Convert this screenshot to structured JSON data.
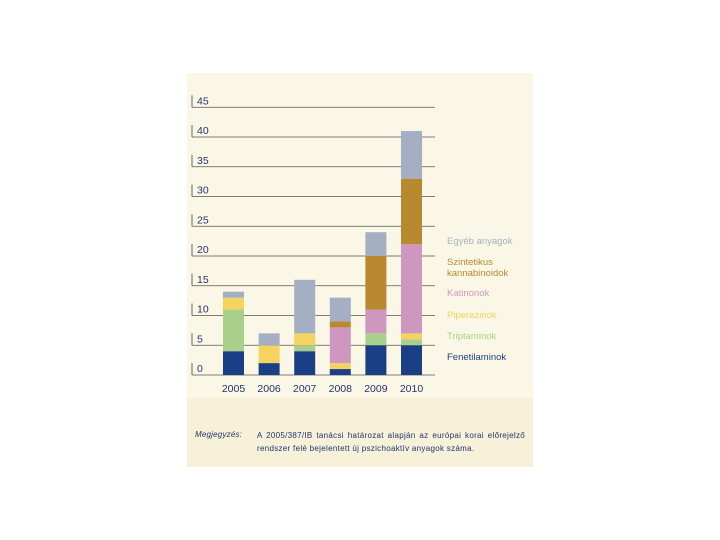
{
  "chart_data": {
    "type": "bar",
    "stacked": true,
    "categories": [
      "2005",
      "2006",
      "2007",
      "2008",
      "2009",
      "2010"
    ],
    "ylim": [
      0,
      45
    ],
    "yticks": [
      0,
      5,
      10,
      15,
      20,
      25,
      30,
      35,
      40,
      45
    ],
    "series": [
      {
        "name": "Fenetilaminok",
        "color": "#1b3f86",
        "values": [
          4,
          2,
          4,
          1,
          5,
          5
        ]
      },
      {
        "name": "Triptaminok",
        "color": "#a9d08a",
        "values": [
          7,
          0,
          1,
          0,
          2,
          1
        ]
      },
      {
        "name": "Piperazinok",
        "color": "#f6d260",
        "values": [
          2,
          3,
          2,
          1,
          0,
          1
        ]
      },
      {
        "name": "Katinonok",
        "color": "#cf97bf",
        "values": [
          0,
          0,
          0,
          6,
          4,
          15
        ]
      },
      {
        "name": "Szintetikus kannabinoidok",
        "color": "#b98930",
        "values": [
          0,
          0,
          0,
          1,
          9,
          11
        ]
      },
      {
        "name": "Egyéb anyagok",
        "color": "#a5afc4",
        "values": [
          1,
          2,
          9,
          4,
          4,
          8
        ]
      }
    ]
  },
  "legend": [
    {
      "lines": [
        "Egyéb anyagok"
      ],
      "color": "#a5afc4"
    },
    {
      "lines": [
        "Szintetikus",
        "kannabinoidok"
      ],
      "color": "#b98930"
    },
    {
      "lines": [
        "Katinonok"
      ],
      "color": "#cf97bf"
    },
    {
      "lines": [
        "Piperazinok"
      ],
      "color": "#f6d260"
    },
    {
      "lines": [
        "Triptaminok"
      ],
      "color": "#a9d08a"
    },
    {
      "lines": [
        "Fenetilaminok"
      ],
      "color": "#1b3f86"
    }
  ],
  "note": {
    "label": "Megjegyzés:",
    "text": "A 2005/387/IB tanácsi határozat alapján az európai korai előrejelző rendszer felé bejelentett új pszichoaktív anyagok száma."
  },
  "colors": {
    "text": "#23346b",
    "grid": "#555555",
    "panel": "#fbf7e6"
  }
}
